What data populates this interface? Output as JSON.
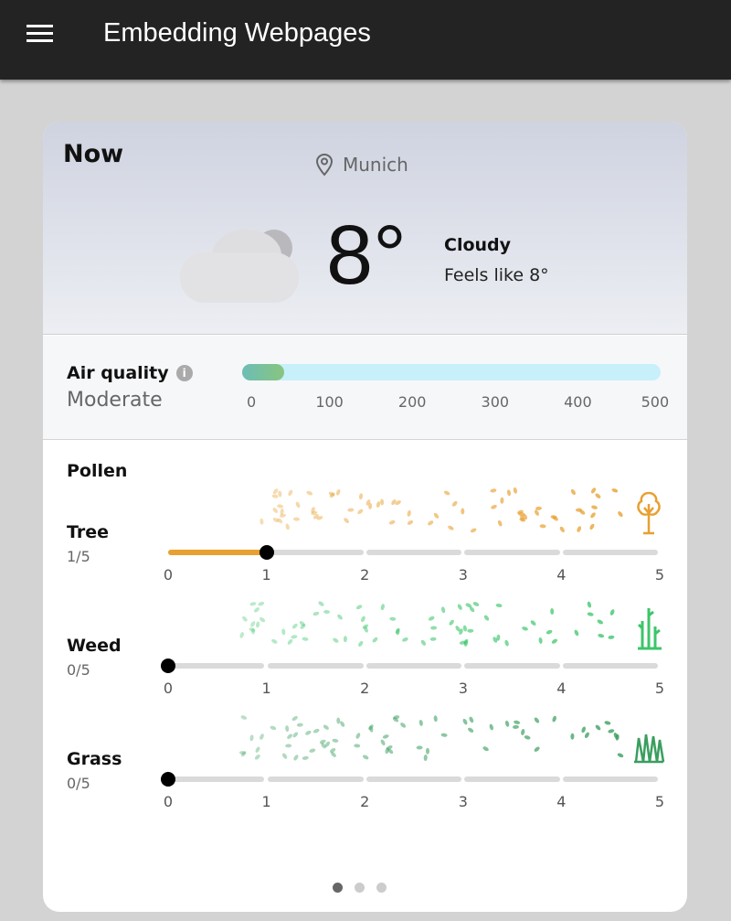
{
  "appbar": {
    "title": "Embedding Webpages",
    "menu_icon": "hamburger-menu-icon"
  },
  "weather": {
    "heading": "Now",
    "location": "Munich",
    "temperature": "8°",
    "condition": "Cloudy",
    "feels_like": "Feels like 8°",
    "icon": "cloud-icon"
  },
  "air_quality": {
    "label": "Air quality",
    "status": "Moderate",
    "value": 50,
    "max": 500,
    "ticks": [
      "0",
      "100",
      "200",
      "300",
      "400",
      "500"
    ],
    "colors": {
      "track": "#c7f0fb",
      "fill": "#6cbdb6"
    }
  },
  "pollen": {
    "heading": "Pollen",
    "ticks": [
      "0",
      "1",
      "2",
      "3",
      "4",
      "5"
    ],
    "max": 5,
    "rows": [
      {
        "name": "Tree",
        "value_text": "1/5",
        "value": 1,
        "color": "#e8a030",
        "icon": "tree-icon"
      },
      {
        "name": "Weed",
        "value_text": "0/5",
        "value": 0,
        "color": "#3cc56a",
        "icon": "weed-icon"
      },
      {
        "name": "Grass",
        "value_text": "0/5",
        "value": 0,
        "color": "#3a9e5e",
        "icon": "grass-icon"
      }
    ]
  },
  "pagination": {
    "pages": 3,
    "active": 0
  }
}
